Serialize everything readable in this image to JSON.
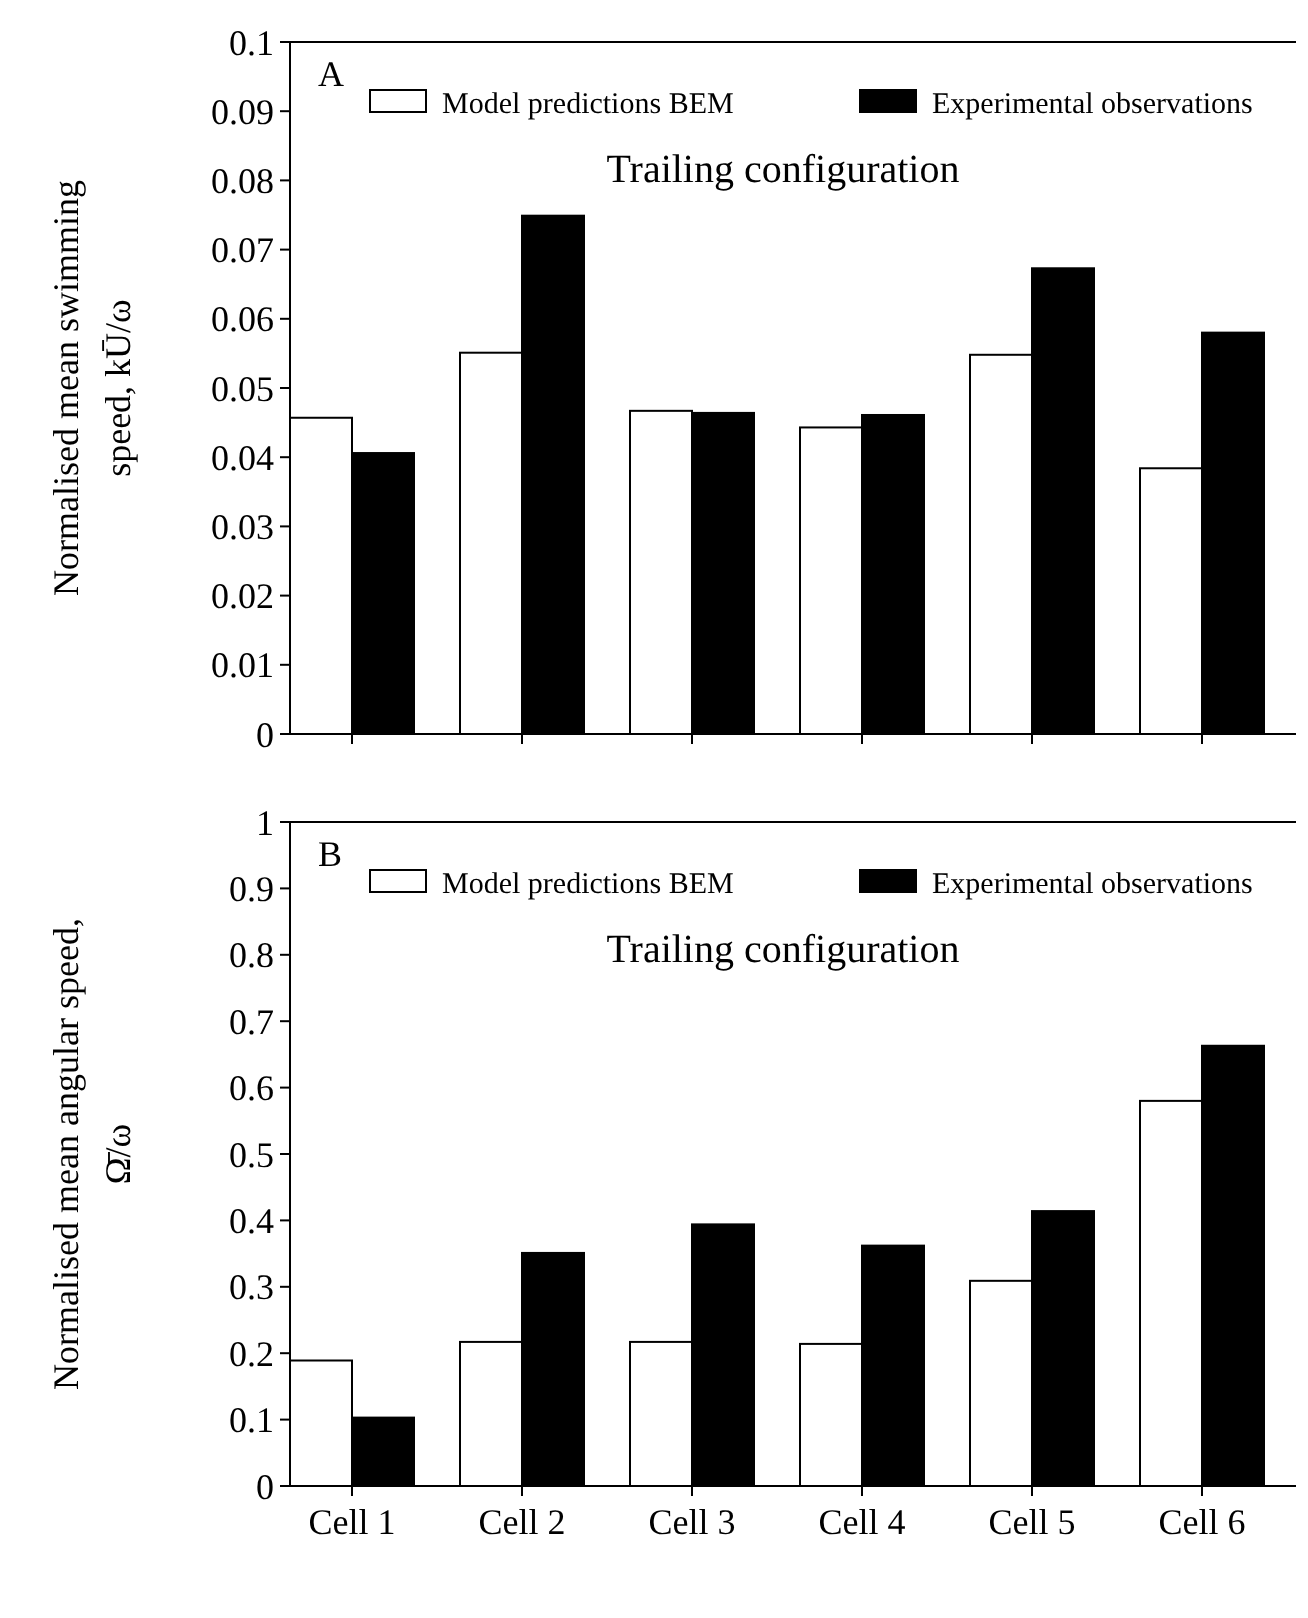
{
  "chart_data": [
    {
      "type": "bar",
      "title": "Trailing configuration",
      "ylabel": "Normalised mean swimming speed, kŪ/ω",
      "annotations": [
        "A"
      ],
      "categories": [
        null,
        null,
        null,
        null,
        null,
        null
      ],
      "series": [
        {
          "name": "Model predictions BEM",
          "color": "#ffffff",
          "values": [
            0.0457,
            0.0551,
            0.0467,
            0.0443,
            0.0548,
            0.0384
          ]
        },
        {
          "name": "Experimental observations",
          "color": "#000000",
          "values": [
            0.0406,
            0.0749,
            0.0464,
            0.0461,
            0.0673,
            0.058
          ]
        }
      ],
      "ylim": [
        0,
        0.1
      ],
      "yticks": [
        0,
        0.01,
        0.02,
        0.03,
        0.04,
        0.05,
        0.06,
        0.07,
        0.08,
        0.09,
        0.1
      ],
      "tick_labels": "y",
      "legend": "top",
      "grid": false
    },
    {
      "type": "bar",
      "title": "Trailing configuration",
      "ylabel": "Normalised mean angular speed, Ω̄/ω",
      "annotations": [
        "B"
      ],
      "categories": [
        "Cell 1",
        "Cell 2",
        "Cell 3",
        "Cell 4",
        "Cell 5",
        "Cell 6"
      ],
      "series": [
        {
          "name": "Model predictions BEM",
          "color": "#ffffff",
          "values": [
            0.189,
            0.217,
            0.217,
            0.214,
            0.309,
            0.58
          ]
        },
        {
          "name": "Experimental observations",
          "color": "#000000",
          "values": [
            0.103,
            0.351,
            0.394,
            0.362,
            0.414,
            0.663
          ]
        }
      ],
      "ylim": [
        0,
        1
      ],
      "yticks": [
        0,
        0.1,
        0.2,
        0.3,
        0.4,
        0.5,
        0.6,
        0.7,
        0.8,
        0.9,
        1
      ],
      "legend": "top",
      "grid": false
    }
  ]
}
